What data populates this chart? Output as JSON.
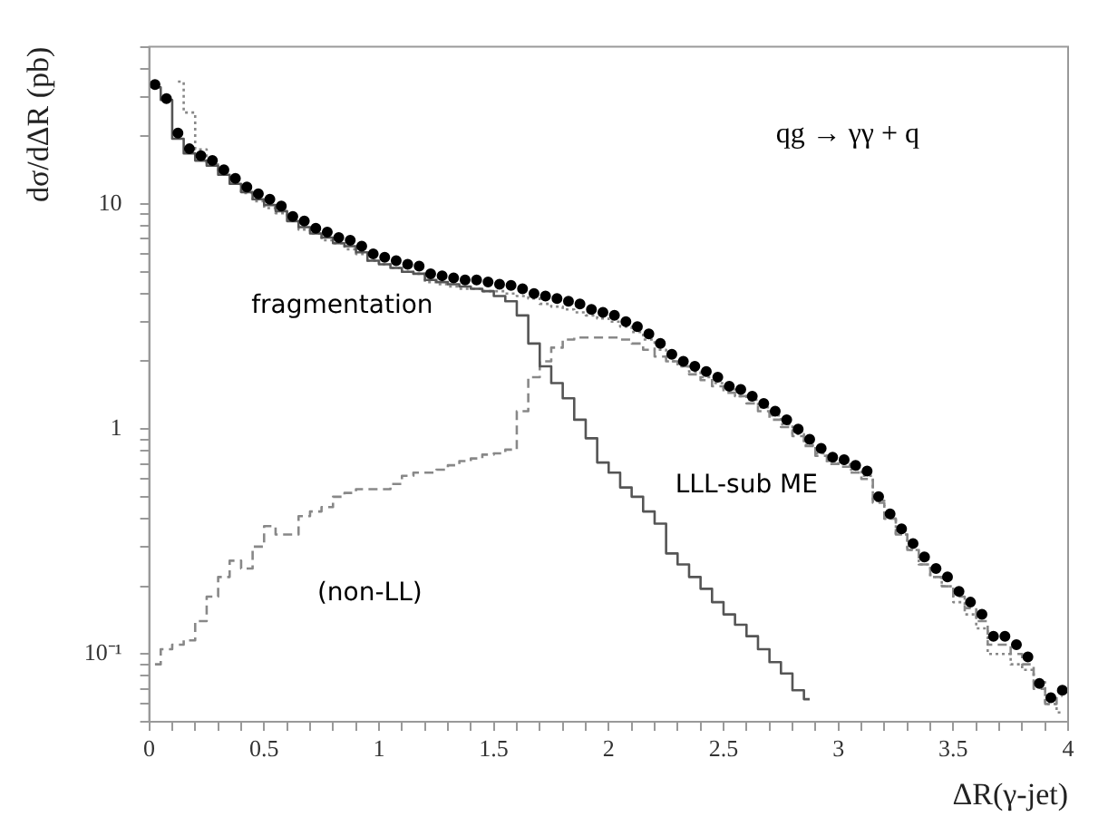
{
  "chart_data": {
    "type": "step",
    "xlabel": "ΔR(γ-jet)",
    "ylabel": "dσ/dΔR (pb)",
    "log": "y",
    "x": [
      0.025,
      0.075,
      0.125,
      0.175,
      0.225,
      0.275,
      0.325,
      0.375,
      0.425,
      0.475,
      0.525,
      0.575,
      0.625,
      0.675,
      0.725,
      0.775,
      0.825,
      0.875,
      0.925,
      0.975,
      1.025,
      1.075,
      1.125,
      1.175,
      1.225,
      1.275,
      1.325,
      1.375,
      1.425,
      1.475,
      1.525,
      1.575,
      1.625,
      1.675,
      1.725,
      1.775,
      1.825,
      1.875,
      1.925,
      1.975,
      2.025,
      2.075,
      2.125,
      2.175,
      2.225,
      2.275,
      2.325,
      2.375,
      2.425,
      2.475,
      2.525,
      2.575,
      2.625,
      2.675,
      2.725,
      2.775,
      2.825,
      2.875,
      2.925,
      2.975,
      3.025,
      3.075,
      3.125,
      3.175,
      3.225,
      3.275,
      3.325,
      3.375,
      3.425,
      3.475,
      3.525,
      3.575,
      3.625,
      3.675,
      3.725,
      3.775,
      3.825,
      3.875,
      3.925,
      3.975
    ],
    "series": [
      {
        "color": "#555555",
        "line_style": "solid",
        "values": [
          33,
          29,
          19.5,
          16.8,
          15.6,
          14.8,
          13.5,
          12.3,
          11.3,
          10.5,
          9.9,
          9.3,
          8.4,
          7.9,
          7.4,
          7.1,
          6.7,
          6.5,
          6.1,
          5.6,
          5.4,
          5.2,
          5.0,
          4.9,
          4.6,
          4.5,
          4.4,
          4.3,
          4.2,
          4.1,
          3.9,
          3.7,
          3.2,
          2.4,
          1.9,
          1.6,
          1.37,
          1.1,
          0.91,
          0.71,
          0.64,
          0.55,
          0.5,
          0.43,
          0.38,
          0.28,
          0.25,
          0.22,
          0.195,
          0.17,
          0.15,
          0.135,
          0.12,
          0.105,
          0.092,
          0.082,
          0.069,
          0.063,
          null,
          null,
          null,
          null,
          null,
          null,
          null,
          null,
          null,
          null,
          null,
          null,
          null,
          null,
          null,
          null,
          null,
          null,
          null,
          null,
          null,
          null
        ]
      },
      {
        "color": "#888888",
        "line_style": "dashed",
        "values": [
          0.09,
          0.105,
          0.11,
          0.115,
          0.14,
          0.18,
          0.22,
          0.26,
          0.24,
          0.3,
          0.37,
          0.34,
          0.34,
          0.41,
          0.43,
          0.45,
          0.5,
          0.52,
          0.54,
          0.54,
          0.54,
          0.57,
          0.62,
          0.64,
          0.64,
          0.66,
          0.69,
          0.72,
          0.74,
          0.77,
          0.78,
          0.81,
          1.2,
          1.7,
          2.0,
          2.3,
          2.5,
          2.55,
          2.55,
          2.55,
          2.55,
          2.5,
          2.4,
          2.25,
          2.1,
          2.0,
          1.9,
          1.75,
          1.65,
          1.55,
          1.45,
          1.4,
          1.3,
          1.2,
          1.1,
          1.02,
          0.93,
          0.84,
          0.76,
          0.7,
          0.68,
          0.64,
          0.6,
          0.47,
          0.4,
          0.34,
          0.29,
          0.25,
          0.22,
          0.2,
          0.18,
          0.16,
          0.14,
          0.11,
          0.11,
          0.1,
          0.09,
          0.07,
          0.06,
          0.065
        ]
      },
      {
        "color": "#888888",
        "line_style": "dotted",
        "values": [
          null,
          null,
          35,
          25.5,
          17.5,
          15,
          13.5,
          12.4,
          11.2,
          10.3,
          9.6,
          9.1,
          8.6,
          7.7,
          7.4,
          6.9,
          6.7,
          6.3,
          6.0,
          5.6,
          5.4,
          5.2,
          5.0,
          4.9,
          4.5,
          4.4,
          4.3,
          4.2,
          4.2,
          4.1,
          4.1,
          4.0,
          3.9,
          3.8,
          3.6,
          3.5,
          3.4,
          3.3,
          3.2,
          3.1,
          3.0,
          2.85,
          2.7,
          2.5,
          2.25,
          2.0,
          1.9,
          1.8,
          1.7,
          1.6,
          1.5,
          1.4,
          1.35,
          1.25,
          1.15,
          1.05,
          0.95,
          0.85,
          0.78,
          0.72,
          0.7,
          0.66,
          0.62,
          0.48,
          0.4,
          0.34,
          0.29,
          0.25,
          0.22,
          0.2,
          0.17,
          0.15,
          0.13,
          0.1,
          0.1,
          0.09,
          0.085,
          0.075,
          0.06,
          0.055
        ]
      },
      {
        "type": "scatter",
        "color": "#000000",
        "marker": "circle",
        "values": [
          34,
          29.4,
          20.7,
          17.6,
          16.4,
          15.6,
          14.2,
          13,
          11.9,
          11.1,
          10.5,
          9.8,
          8.8,
          8.4,
          7.8,
          7.5,
          7.1,
          6.9,
          6.5,
          6,
          5.8,
          5.6,
          5.4,
          5.3,
          4.9,
          4.8,
          4.7,
          4.6,
          4.6,
          4.5,
          4.4,
          4.35,
          4.2,
          4.0,
          3.9,
          3.8,
          3.7,
          3.6,
          3.4,
          3.3,
          3.2,
          3.0,
          2.85,
          2.65,
          2.4,
          2.15,
          2.0,
          1.9,
          1.8,
          1.7,
          1.55,
          1.5,
          1.4,
          1.3,
          1.2,
          1.1,
          1.0,
          0.9,
          0.82,
          0.75,
          0.73,
          0.69,
          0.65,
          0.5,
          0.42,
          0.36,
          0.31,
          0.27,
          0.24,
          0.22,
          0.19,
          0.17,
          0.15,
          0.12,
          0.12,
          0.11,
          0.097,
          0.074,
          0.064,
          0.069
        ]
      }
    ],
    "xlim": [
      0,
      4
    ],
    "xticks": [
      0,
      {
        "value": 0.1,
        "label": null
      },
      {
        "value": 0.2,
        "label": null
      },
      {
        "value": 0.3,
        "label": null
      },
      {
        "value": 0.4,
        "label": null
      },
      0.5,
      {
        "value": 0.6,
        "label": null
      },
      {
        "value": 0.7,
        "label": null
      },
      {
        "value": 0.8,
        "label": null
      },
      {
        "value": 0.9,
        "label": null
      },
      1,
      {
        "value": 1.1,
        "label": null
      },
      {
        "value": 1.2,
        "label": null
      },
      {
        "value": 1.3,
        "label": null
      },
      {
        "value": 1.4,
        "label": null
      },
      1.5,
      {
        "value": 1.6,
        "label": null
      },
      {
        "value": 1.7,
        "label": null
      },
      {
        "value": 1.8,
        "label": null
      },
      {
        "value": 1.9,
        "label": null
      },
      2,
      {
        "value": 2.1,
        "label": null
      },
      {
        "value": 2.2,
        "label": null
      },
      {
        "value": 2.3,
        "label": null
      },
      {
        "value": 2.4,
        "label": null
      },
      2.5,
      {
        "value": 2.6,
        "label": null
      },
      {
        "value": 2.7,
        "label": null
      },
      {
        "value": 2.8,
        "label": null
      },
      {
        "value": 2.9,
        "label": null
      },
      3,
      {
        "value": 3.1,
        "label": null
      },
      {
        "value": 3.2,
        "label": null
      },
      {
        "value": 3.3,
        "label": null
      },
      {
        "value": 3.4,
        "label": null
      },
      3.5,
      {
        "value": 3.6,
        "label": null
      },
      {
        "value": 3.7,
        "label": null
      },
      {
        "value": 3.8,
        "label": null
      },
      {
        "value": 3.9,
        "label": null
      },
      4
    ],
    "ylim": [
      0.05,
      50
    ],
    "yticks": [
      {
        "value": 0.05,
        "label": null
      },
      {
        "value": 0.06,
        "label": null
      },
      {
        "value": 0.07,
        "label": null
      },
      {
        "value": 0.08,
        "label": null
      },
      {
        "value": 0.09,
        "label": null
      },
      {
        "value": 0.1,
        "label": "10⁻¹"
      },
      {
        "value": 0.2,
        "label": null
      },
      {
        "value": 0.3,
        "label": null
      },
      {
        "value": 0.4,
        "label": null
      },
      {
        "value": 0.5,
        "label": null
      },
      {
        "value": 0.6,
        "label": null
      },
      {
        "value": 0.7,
        "label": null
      },
      {
        "value": 0.8,
        "label": null
      },
      {
        "value": 0.9,
        "label": null
      },
      1,
      {
        "value": 2,
        "label": null
      },
      {
        "value": 3,
        "label": null
      },
      {
        "value": 4,
        "label": null
      },
      {
        "value": 5,
        "label": null
      },
      {
        "value": 6,
        "label": null
      },
      {
        "value": 7,
        "label": null
      },
      {
        "value": 8,
        "label": null
      },
      {
        "value": 9,
        "label": null
      },
      10,
      {
        "value": 20,
        "label": null
      },
      {
        "value": 30,
        "label": null
      },
      {
        "value": 40,
        "label": null
      },
      {
        "value": 50,
        "label": null
      }
    ],
    "annotations": [
      "qg → γγ + q",
      "fragmentation",
      "LLL-sub ME",
      "(non-LL)"
    ]
  }
}
